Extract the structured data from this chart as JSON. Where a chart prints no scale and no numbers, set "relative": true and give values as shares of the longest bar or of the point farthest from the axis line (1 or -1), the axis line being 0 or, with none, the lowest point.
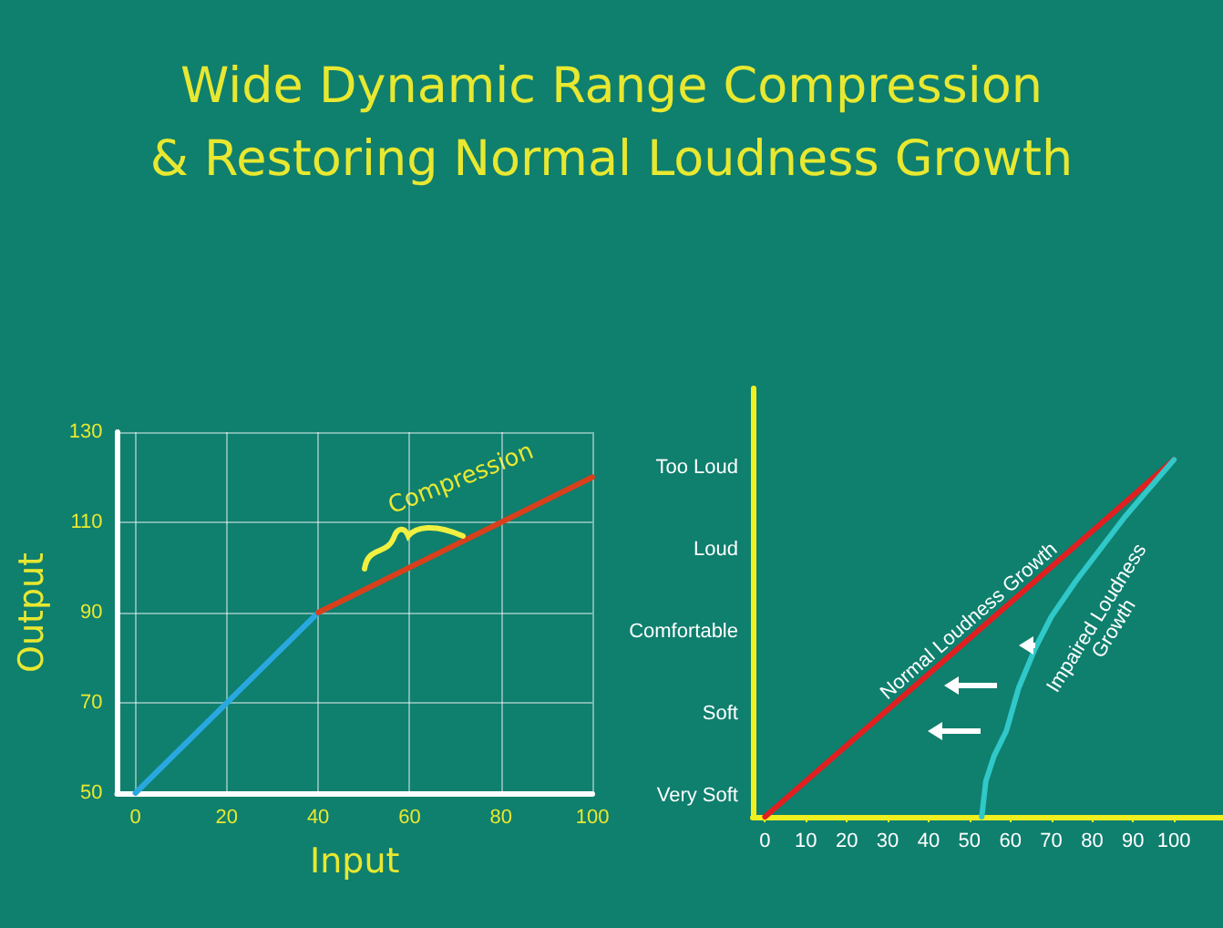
{
  "chart_data": [
    {
      "type": "line",
      "title": "Wide Dynamic Range Compression\n& Restoring Normal Loudness Growth",
      "xlabel": "Input",
      "ylabel": "Output",
      "xlim": [
        -4,
        100
      ],
      "xticks": [
        0,
        20,
        40,
        60,
        80,
        100
      ],
      "ylim": [
        50,
        130
      ],
      "yticks": [
        50,
        70,
        90,
        110,
        130
      ],
      "grid": true,
      "marker": "none",
      "line_style": "solid",
      "series": [
        {
          "color": "#29a8e0",
          "x": [
            0,
            40
          ],
          "values": [
            50,
            90
          ]
        },
        {
          "color": "#d8401c",
          "x": [
            40,
            100
          ],
          "values": [
            90,
            120
          ]
        }
      ],
      "annotations": [
        "Compression"
      ]
    },
    {
      "type": "line",
      "xlim": [
        -3,
        112
      ],
      "xticks": [
        0,
        10,
        20,
        30,
        40,
        50,
        60,
        70,
        80,
        90,
        100
      ],
      "relative": true,
      "grid": false,
      "marker": "none",
      "line_style": "solid",
      "series": [
        {
          "name": "Normal Loudness Growth",
          "color": "#e02020",
          "x": [
            0,
            100
          ],
          "values": [
            0,
            1
          ]
        },
        {
          "name": "Impaired Loudness Growth",
          "color": "#30c8c8",
          "x": [
            53,
            54,
            56,
            59,
            62,
            66,
            70,
            76,
            82,
            88,
            94,
            100
          ],
          "values": [
            0,
            0.1,
            0.17,
            0.24,
            0.36,
            0.47,
            0.56,
            0.66,
            0.75,
            0.84,
            0.92,
            1
          ]
        }
      ],
      "annotations": [
        "Very Soft",
        "Soft",
        "Comfortable",
        "Loud",
        "Too Loud"
      ]
    }
  ]
}
